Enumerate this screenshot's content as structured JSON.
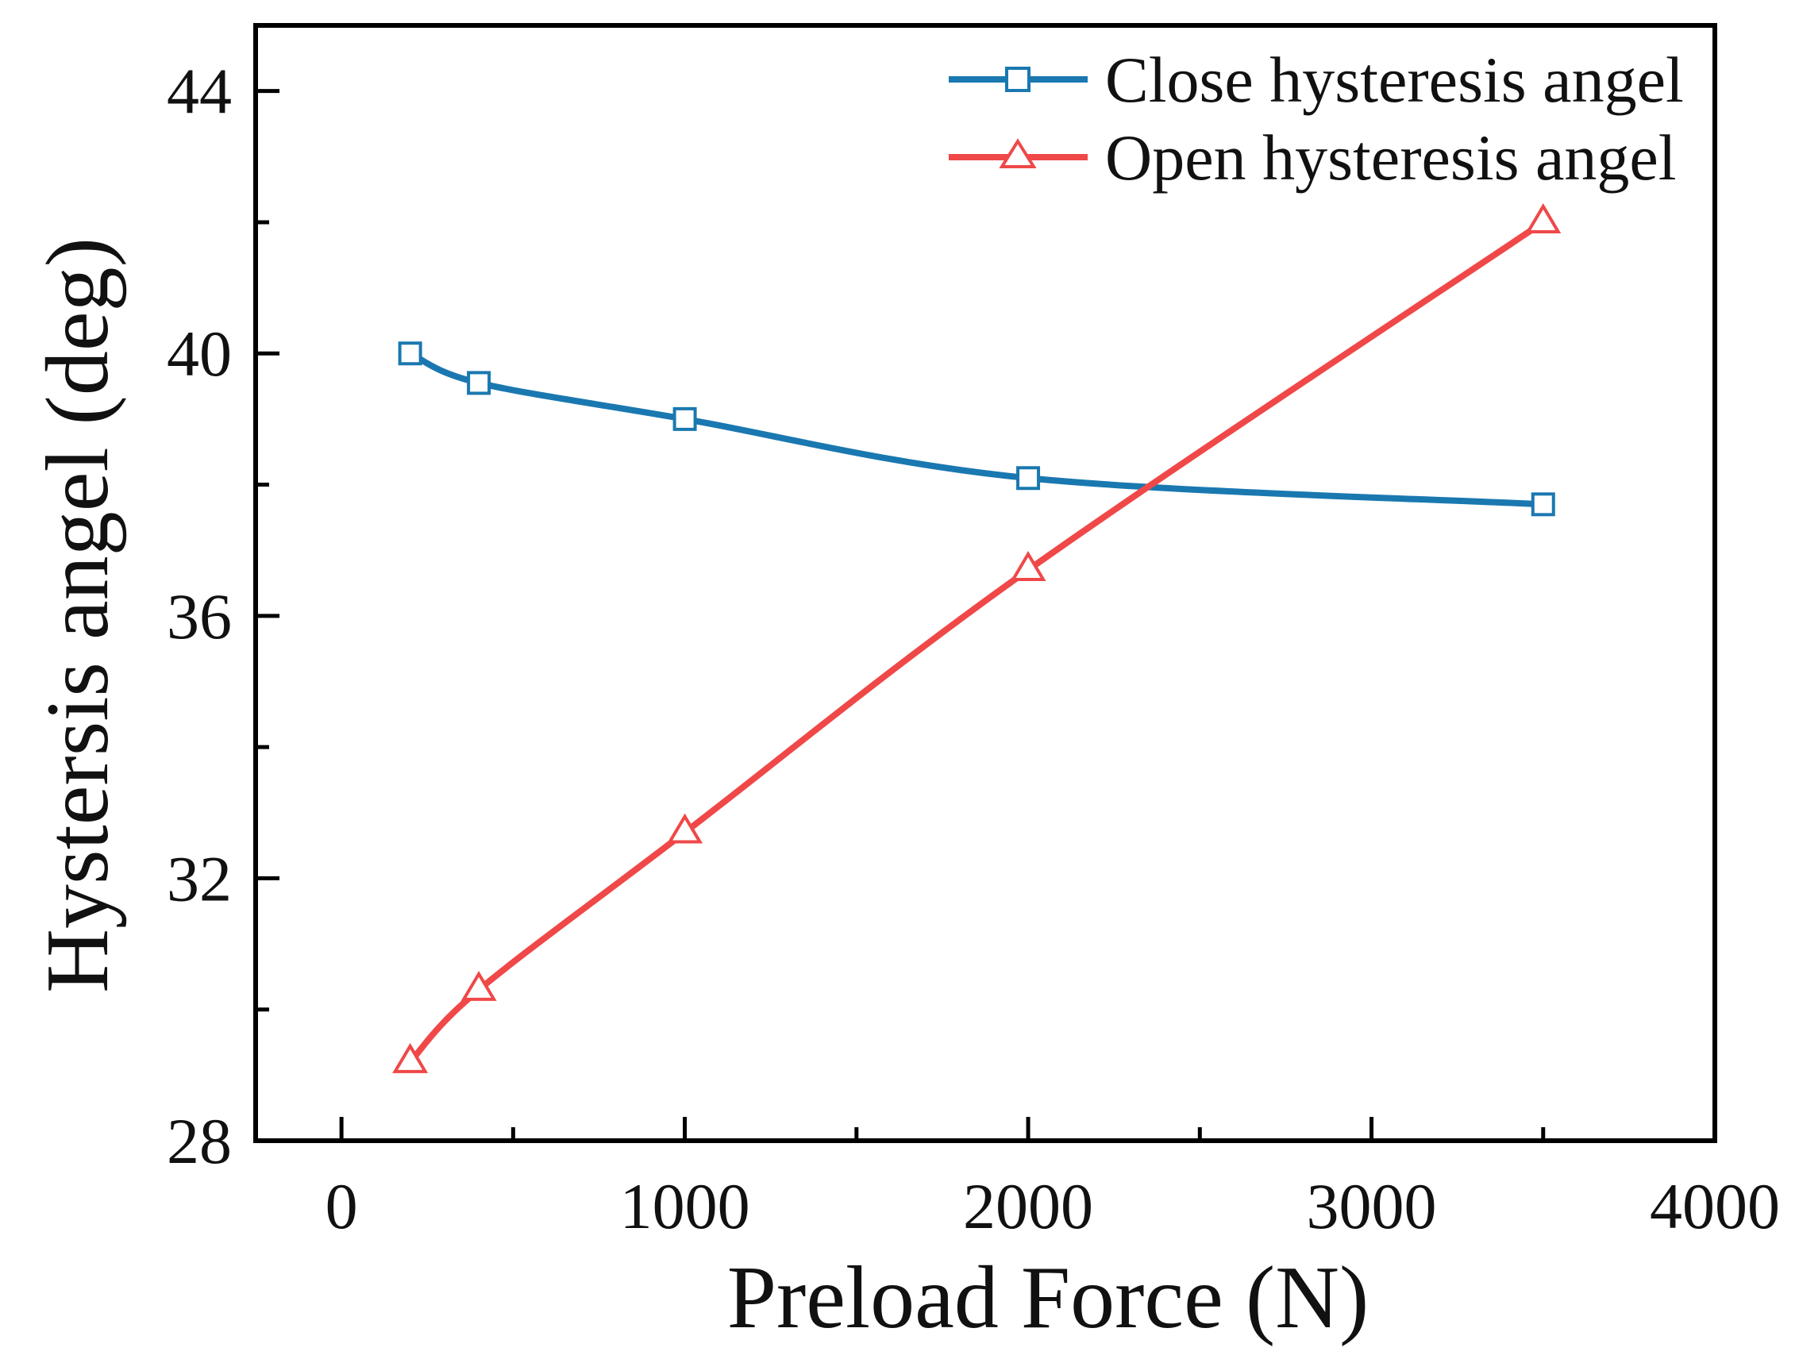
{
  "chart_data": {
    "type": "line",
    "title": "",
    "xlabel": "Preload Force (N)",
    "ylabel": "Hystersis angel (deg)",
    "xlim": [
      -250,
      4000
    ],
    "ylim": [
      28,
      45
    ],
    "xticks": [
      0,
      1000,
      2000,
      3000,
      4000
    ],
    "yticks": [
      28,
      32,
      36,
      40,
      44
    ],
    "xtick_labels": [
      "0",
      "1000",
      "2000",
      "3000",
      "4000"
    ],
    "ytick_labels": [
      "28",
      "32",
      "36",
      "40",
      "44"
    ],
    "grid": false,
    "legend_position": "top-right",
    "series": [
      {
        "name": "Close hysteresis angel",
        "color": "#1a78b0",
        "marker": "square",
        "x": [
          200,
          400,
          1000,
          2000,
          3500
        ],
        "y": [
          40.0,
          39.55,
          39.0,
          38.1,
          37.7
        ]
      },
      {
        "name": "Open hysteresis angel",
        "color": "#f04848",
        "marker": "triangle",
        "x": [
          200,
          400,
          1000,
          2000,
          3500
        ],
        "y": [
          29.2,
          30.3,
          32.7,
          36.7,
          42.0
        ]
      }
    ]
  }
}
